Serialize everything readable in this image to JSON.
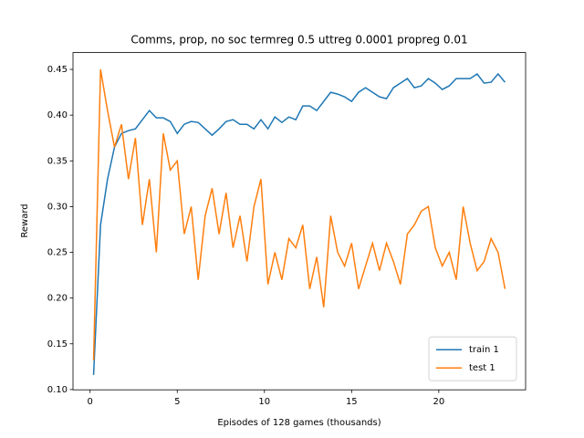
{
  "chart_data": {
    "type": "line",
    "title": "Comms, prop, no soc termreg 0.5 uttreg 0.0001 propreg 0.01",
    "xlabel": "Episodes of 128 games (thousands)",
    "ylabel": "Reward",
    "x": [
      0.2,
      0.6,
      1.0,
      1.4,
      1.8,
      2.2,
      2.6,
      3.0,
      3.4,
      3.8,
      4.2,
      4.6,
      5.0,
      5.4,
      5.8,
      6.2,
      6.6,
      7.0,
      7.4,
      7.8,
      8.2,
      8.6,
      9.0,
      9.4,
      9.8,
      10.2,
      10.6,
      11.0,
      11.4,
      11.8,
      12.2,
      12.6,
      13.0,
      13.4,
      13.8,
      14.2,
      14.6,
      15.0,
      15.4,
      15.8,
      16.2,
      16.6,
      17.0,
      17.4,
      17.8,
      18.2,
      18.6,
      19.0,
      19.4,
      19.8,
      20.2,
      20.6,
      21.0,
      21.4,
      21.8,
      22.2,
      22.6,
      23.0,
      23.4,
      23.8
    ],
    "series": [
      {
        "name": "train 1",
        "color": "#1f77b4",
        "values": [
          0.116,
          0.28,
          0.33,
          0.365,
          0.38,
          0.383,
          0.385,
          0.395,
          0.405,
          0.397,
          0.397,
          0.393,
          0.38,
          0.39,
          0.393,
          0.392,
          0.385,
          0.378,
          0.385,
          0.393,
          0.395,
          0.39,
          0.39,
          0.385,
          0.395,
          0.385,
          0.398,
          0.392,
          0.398,
          0.395,
          0.41,
          0.41,
          0.405,
          0.415,
          0.425,
          0.423,
          0.42,
          0.415,
          0.425,
          0.43,
          0.425,
          0.42,
          0.418,
          0.43,
          0.435,
          0.44,
          0.43,
          0.432,
          0.44,
          0.435,
          0.428,
          0.432,
          0.44,
          0.44,
          0.44,
          0.445,
          0.435,
          0.436,
          0.445,
          0.436
        ]
      },
      {
        "name": "test 1",
        "color": "#ff7f0e",
        "values": [
          0.132,
          0.45,
          0.405,
          0.365,
          0.39,
          0.33,
          0.375,
          0.28,
          0.33,
          0.25,
          0.38,
          0.34,
          0.35,
          0.27,
          0.3,
          0.22,
          0.29,
          0.32,
          0.27,
          0.315,
          0.255,
          0.29,
          0.24,
          0.3,
          0.33,
          0.215,
          0.25,
          0.22,
          0.265,
          0.255,
          0.28,
          0.21,
          0.245,
          0.19,
          0.29,
          0.25,
          0.235,
          0.26,
          0.21,
          0.235,
          0.26,
          0.23,
          0.26,
          0.24,
          0.215,
          0.27,
          0.28,
          0.295,
          0.3,
          0.255,
          0.235,
          0.25,
          0.22,
          0.3,
          0.26,
          0.23,
          0.24,
          0.265,
          0.25,
          0.21
        ]
      }
    ],
    "xlim": [
      -0.98,
      24.98
    ],
    "xticks": [
      0,
      5,
      10,
      15,
      20
    ],
    "ylim": [
      0.0997,
      0.4684
    ],
    "yticks": [
      {
        "value": 0.1,
        "label": "0.10"
      },
      {
        "value": 0.15,
        "label": "0.15"
      },
      {
        "value": 0.2,
        "label": "0.20"
      },
      {
        "value": 0.25,
        "label": "0.25"
      },
      {
        "value": 0.3,
        "label": "0.30"
      },
      {
        "value": 0.35,
        "label": "0.35"
      },
      {
        "value": 0.4,
        "label": "0.40"
      },
      {
        "value": 0.45,
        "label": "0.45"
      }
    ],
    "legend": "lower right"
  }
}
